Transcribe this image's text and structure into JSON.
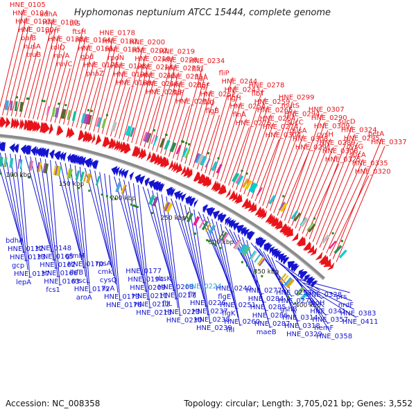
{
  "title": "Hyphomonas neptunium ATCC 15444, complete genome",
  "accession": "Accession: NC_008358",
  "summary": "Topology: circular; Length: 3,705,021 bp; Genes: 3,552",
  "colors": {
    "forward": "#e8141a",
    "reverse": "#1414d2",
    "highlight": "#1fa7d8",
    "backbone": "#8a8a8a",
    "marker": "#1e8a1e"
  },
  "scale_labels": [
    "100 kbp",
    "150 kbp",
    "200 kbp",
    "250 kbp",
    "300 kbp",
    "350 kbp",
    "400 kbp"
  ],
  "forward_genes": [
    "HNE_0105",
    "HNE_0104",
    "HNE_0103",
    "HNE_0100",
    "baiB",
    "nusA",
    "truB",
    "adhA",
    "HNE_0130",
    "pyrF",
    "HNE_0138",
    "tolQ",
    "ruvA",
    "ruvC",
    "tilS",
    "ftsH",
    "HNE_0164",
    "HNE_0161",
    "gbd",
    "HNE_0175",
    "phaZ",
    "HNE_0178",
    "HNE_0182",
    "HNE_0185",
    "rpoN",
    "HNE_0198",
    "HNE_0196",
    "HNE_0189",
    "HNE_0200",
    "HNE_0202",
    "HNE_0210",
    "HNE_0214",
    "HNE_0215",
    "HNE_0216",
    "HNE_0218",
    "HNE_0219",
    "HNE_0220",
    "HNE_0225",
    "HNE_0231",
    "HNE_0236",
    "fliF",
    "HNE_0235",
    "HNE_0234",
    "fliG",
    "flgA",
    "flgF",
    "HNE_0252",
    "fliQ",
    "flgB",
    "fliP",
    "HNE_0244",
    "HNE_0243",
    "flgH",
    "HNE_0254",
    "flhA",
    "HNE_0276",
    "HNE_0278",
    "flbT",
    "HNE_0259",
    "HNE_0265",
    "HNE_0264",
    "HNE_0274",
    "HNE_0304",
    "HNE_0299",
    "mutS",
    "HNE_0294",
    "sucC",
    "dusA",
    "HNE_0303",
    "HNE_0291",
    "HNE_0307",
    "HNE_0290",
    "HNE_0309",
    "cysH",
    "HNE_0289",
    "HNE_0308",
    "HNE_0325",
    "sucD",
    "HNE_0324",
    "HNE_0295",
    "cysG",
    "sucA",
    "HNE_0335",
    "HNE_0320",
    "petA",
    "HNE_0337"
  ],
  "reverse_genes": [
    "bdhA",
    "HNE_0132",
    "HNE_0133",
    "gcp",
    "HNE_0137",
    "lepA",
    "HNE_0148",
    "HNE_0165",
    "HNE_0162",
    "HNE_0166",
    "HNE_0163",
    "fcs1",
    "glmM",
    "HNE_0170",
    "ihfB",
    "mscL",
    "HNE_0172",
    "aroA",
    "rpsA",
    "cmk",
    "cysQ",
    "ilvA",
    "HNE_0173",
    "HNE_0176",
    "HNE_0177",
    "HNE_0194",
    "HNE_0209",
    "HNE_0211",
    "HNE_0212",
    "HNE_0213",
    "rbsK",
    "HNE_0208",
    "HNE_0217",
    "fliL",
    "HNE_0223",
    "HNE_0230",
    "HNE_0224",
    "fliJ",
    "HNE_0226",
    "HNE_0237",
    "HNE_0238",
    "HNE_0239",
    "HNE_0240",
    "flgE",
    "HNE_0251",
    "flgK",
    "HNE_0260",
    "fliI",
    "HNE_0277",
    "HNE_0284",
    "HNE_0285",
    "HNE_0286",
    "HNE_0287",
    "maeB",
    "HNE_0298",
    "HNE_0279",
    "gshB",
    "HNE_0314",
    "HNE_0318",
    "HNE_0329",
    "HNE_0328",
    "rpoH",
    "HNE_0341",
    "HNE_0357",
    "hemF",
    "HNE_0358",
    "prs",
    "nrdF",
    "HNE_0383",
    "HNE_0411"
  ]
}
